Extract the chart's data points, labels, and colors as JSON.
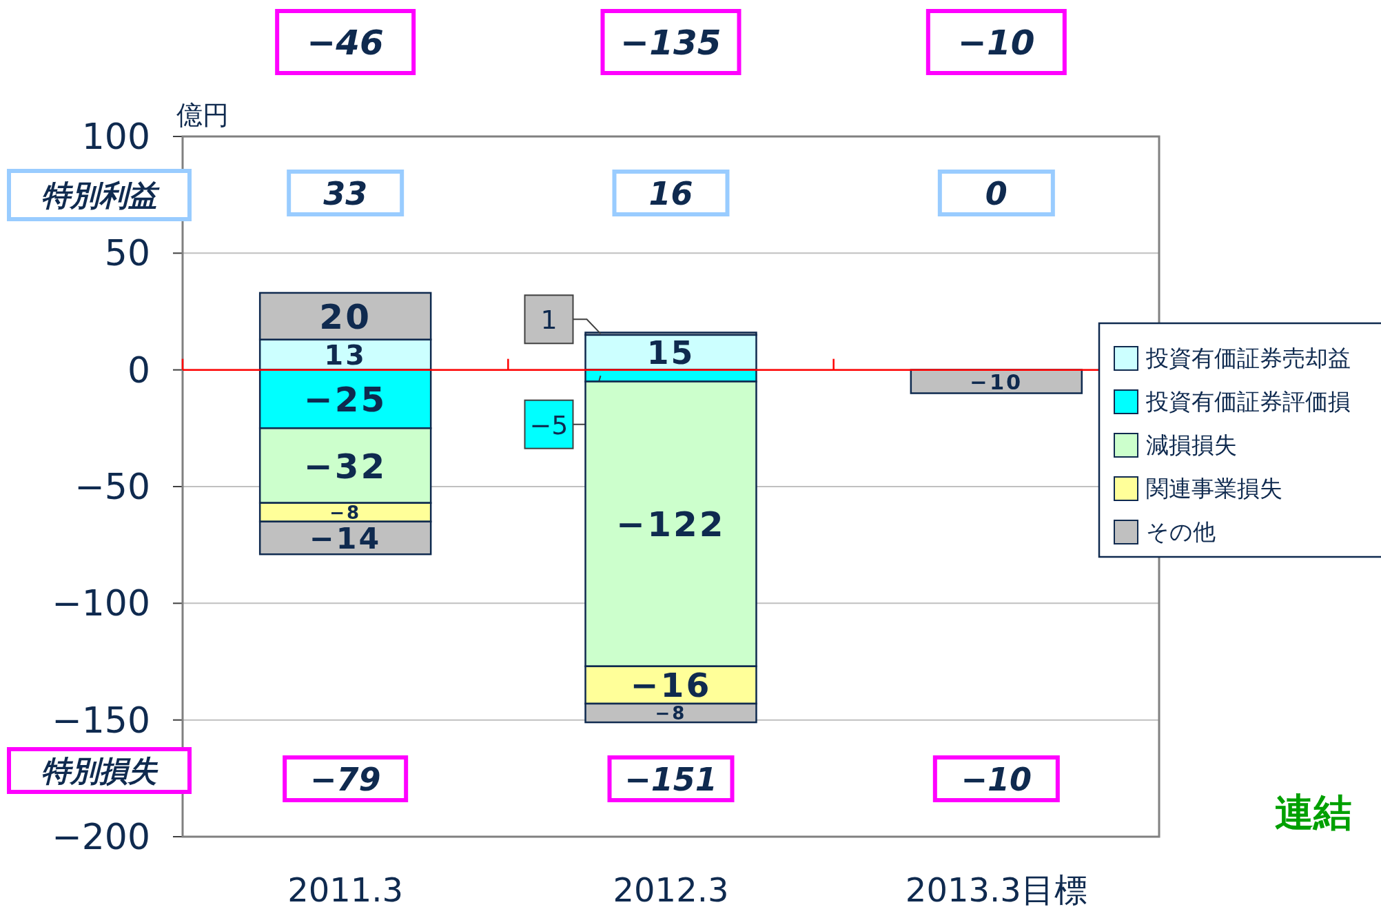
{
  "chart_data": {
    "type": "bar",
    "stacked": true,
    "ylabel": "億円",
    "categories": [
      "2011.3",
      "2012.3",
      "2013.3目標"
    ],
    "series": [
      {
        "name": "投資有価証券売却益",
        "color": "#ccffff",
        "values": [
          13,
          15,
          null
        ]
      },
      {
        "name": "投資有価証券評価損",
        "color": "#00ffff",
        "values": [
          -25,
          -5,
          null
        ]
      },
      {
        "name": "減損損失",
        "color": "#ccffcc",
        "values": [
          -32,
          -122,
          null
        ]
      },
      {
        "name": "関連事業損失",
        "color": "#ffff99",
        "values": [
          -8,
          -16,
          null
        ]
      },
      {
        "color": "#c0c0c0",
        "values": [
          20,
          1,
          null
        ]
      },
      {
        "name": "その他",
        "color": "#c0c0c0",
        "values": [
          -14,
          -8,
          -10
        ]
      }
    ],
    "ylim": [
      -200,
      100
    ],
    "yticks": [
      -200,
      -150,
      -100,
      -50,
      0,
      50,
      100
    ],
    "grid": "y",
    "legend": "right",
    "data_labels": true,
    "ref_lines": [
      {
        "axis": "y",
        "value": 0,
        "color": "#ff0000"
      }
    ],
    "annotations": [
      "特別利益",
      "33",
      "16",
      "0",
      "特別損失",
      "−79",
      "−151",
      "−10",
      "−46",
      "−135",
      "−10",
      "連結"
    ]
  }
}
